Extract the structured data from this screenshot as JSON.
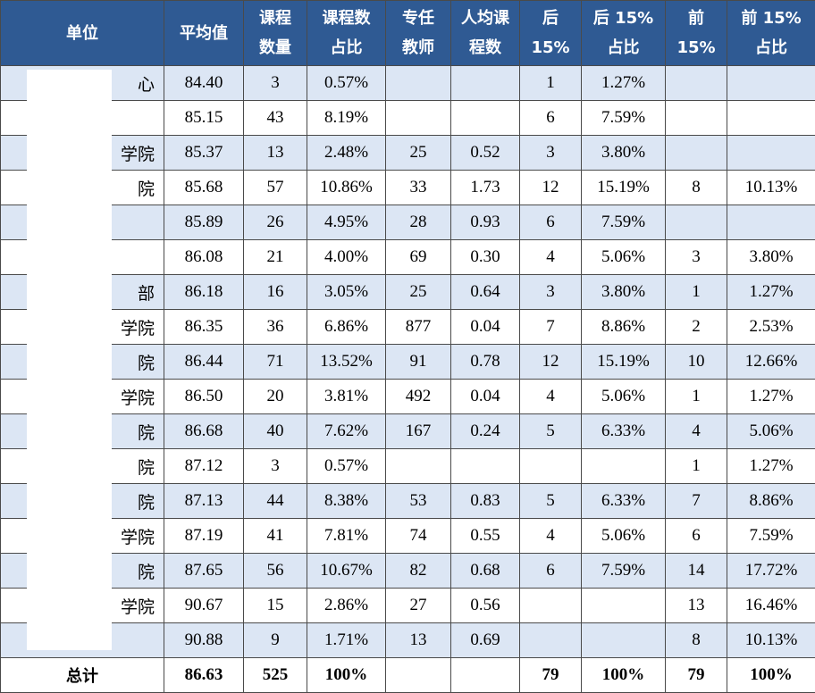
{
  "headers": [
    [
      "单位"
    ],
    [
      "平均值"
    ],
    [
      "课程",
      "数量"
    ],
    [
      "课程数",
      "占比"
    ],
    [
      "专任",
      "教师"
    ],
    [
      "人均课",
      "程数"
    ],
    [
      "后",
      "15%"
    ],
    [
      "后 15%",
      "占比"
    ],
    [
      "前",
      "15%"
    ],
    [
      "前 15%",
      "占比"
    ]
  ],
  "rows": [
    [
      "心",
      "84.40",
      "3",
      "0.57%",
      "",
      "",
      "1",
      "1.27%",
      "",
      ""
    ],
    [
      "",
      "85.15",
      "43",
      "8.19%",
      "",
      "",
      "6",
      "7.59%",
      "",
      ""
    ],
    [
      "学院",
      "85.37",
      "13",
      "2.48%",
      "25",
      "0.52",
      "3",
      "3.80%",
      "",
      ""
    ],
    [
      "院",
      "85.68",
      "57",
      "10.86%",
      "33",
      "1.73",
      "12",
      "15.19%",
      "8",
      "10.13%"
    ],
    [
      "",
      "85.89",
      "26",
      "4.95%",
      "28",
      "0.93",
      "6",
      "7.59%",
      "",
      ""
    ],
    [
      "",
      "86.08",
      "21",
      "4.00%",
      "69",
      "0.30",
      "4",
      "5.06%",
      "3",
      "3.80%"
    ],
    [
      "部",
      "86.18",
      "16",
      "3.05%",
      "25",
      "0.64",
      "3",
      "3.80%",
      "1",
      "1.27%"
    ],
    [
      "学院",
      "86.35",
      "36",
      "6.86%",
      "877",
      "0.04",
      "7",
      "8.86%",
      "2",
      "2.53%"
    ],
    [
      "院",
      "86.44",
      "71",
      "13.52%",
      "91",
      "0.78",
      "12",
      "15.19%",
      "10",
      "12.66%"
    ],
    [
      "学院",
      "86.50",
      "20",
      "3.81%",
      "492",
      "0.04",
      "4",
      "5.06%",
      "1",
      "1.27%"
    ],
    [
      "院",
      "86.68",
      "40",
      "7.62%",
      "167",
      "0.24",
      "5",
      "6.33%",
      "4",
      "5.06%"
    ],
    [
      "院",
      "87.12",
      "3",
      "0.57%",
      "",
      "",
      "",
      "",
      "1",
      "1.27%"
    ],
    [
      "院",
      "87.13",
      "44",
      "8.38%",
      "53",
      "0.83",
      "5",
      "6.33%",
      "7",
      "8.86%"
    ],
    [
      "学院",
      "87.19",
      "41",
      "7.81%",
      "74",
      "0.55",
      "4",
      "5.06%",
      "6",
      "7.59%"
    ],
    [
      "院",
      "87.65",
      "56",
      "10.67%",
      "82",
      "0.68",
      "6",
      "7.59%",
      "14",
      "17.72%"
    ],
    [
      "学院",
      "90.67",
      "15",
      "2.86%",
      "27",
      "0.56",
      "",
      "",
      "13",
      "16.46%"
    ],
    [
      "",
      "90.88",
      "9",
      "1.71%",
      "13",
      "0.69",
      "",
      "",
      "8",
      "10.13%"
    ]
  ],
  "total": [
    "总计",
    "86.63",
    "525",
    "100%",
    "",
    "",
    "79",
    "100%",
    "79",
    "100%"
  ],
  "colors": {
    "header_bg": "#2f5a93",
    "header_text": "#ffffff",
    "row_shade": "#dce6f4",
    "row_plain": "#ffffff",
    "border": "#4a4a4a"
  }
}
